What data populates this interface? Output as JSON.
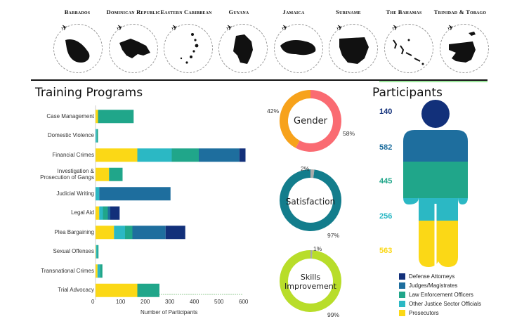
{
  "countries": [
    {
      "name": "Barbados"
    },
    {
      "name": "Dominican Republic"
    },
    {
      "name": "Eastern Caribbean"
    },
    {
      "name": "Guyana"
    },
    {
      "name": "Jamaica"
    },
    {
      "name": "Suriname"
    },
    {
      "name": "The Bahamas"
    },
    {
      "name": "Trinidad & Tobago"
    }
  ],
  "colors": {
    "defense": "#12307a",
    "judges": "#1e6e9e",
    "law": "#20a68a",
    "other": "#2bb8c4",
    "prosecutors": "#fbd816",
    "gender_a": "#f7a21b",
    "gender_b": "#fa6b72",
    "satisfaction": "#137d8c",
    "skills": "#b8dd2a",
    "remainder": "#aaaaaa"
  },
  "training": {
    "title": "Training Programs",
    "xlabel": "Number of Participants"
  },
  "donuts": {
    "gender": {
      "label": "Gender",
      "pct_a": "42%",
      "pct_b": "58%"
    },
    "satisfaction": {
      "label": "Satisfaction",
      "pct_small": "2%",
      "pct_main": "97%"
    },
    "skills": {
      "label1": "Skills",
      "label2": "Improvement",
      "pct_small": "1%",
      "pct_main": "99%"
    }
  },
  "participants": {
    "title": "Participants",
    "counts": [
      "140",
      "582",
      "445",
      "256",
      "563"
    ]
  },
  "chart_data": [
    {
      "type": "bar",
      "orientation": "horizontal",
      "stacked": true,
      "title": "Training Programs",
      "xlabel": "Number of Participants",
      "xlim": [
        0,
        600
      ],
      "xticks": [
        0,
        100,
        200,
        300,
        400,
        500,
        600
      ],
      "categories": [
        "Case Management",
        "Domestic Violence",
        "Financial Crimes",
        "Investigation & Prosecution of Gangs",
        "Judicial Writing",
        "Legal Aid",
        "Plea Bargaining",
        "Sexual Offenses",
        "Transnational Crimes",
        "Trial Advocacy"
      ],
      "series": [
        {
          "name": "Prosecutors",
          "values": [
            10,
            0,
            170,
            55,
            0,
            15,
            75,
            2,
            8,
            170
          ]
        },
        {
          "name": "Other Justice Sector Officials",
          "values": [
            0,
            5,
            140,
            0,
            15,
            15,
            45,
            5,
            10,
            0
          ]
        },
        {
          "name": "Law Enforcement Officers",
          "values": [
            145,
            5,
            110,
            55,
            0,
            20,
            30,
            5,
            10,
            90
          ]
        },
        {
          "name": "Judges/Magistrates",
          "values": [
            0,
            0,
            165,
            0,
            290,
            10,
            135,
            0,
            0,
            0
          ]
        },
        {
          "name": "Defense Attorneys",
          "values": [
            0,
            0,
            25,
            0,
            0,
            38,
            80,
            0,
            0,
            0
          ]
        }
      ]
    },
    {
      "type": "pie",
      "title": "Gender",
      "values": [
        42,
        58
      ]
    },
    {
      "type": "pie",
      "title": "Satisfaction",
      "values": [
        2,
        97
      ]
    },
    {
      "type": "pie",
      "title": "Skills Improvement",
      "values": [
        1,
        99
      ]
    },
    {
      "type": "bar",
      "title": "Participants",
      "categories": [
        "Defense Attorneys",
        "Judges/Magistrates",
        "Law Enforcement Officers",
        "Other Justice Sector Officials",
        "Prosecutors"
      ],
      "values": [
        140,
        582,
        445,
        256,
        563
      ]
    }
  ]
}
